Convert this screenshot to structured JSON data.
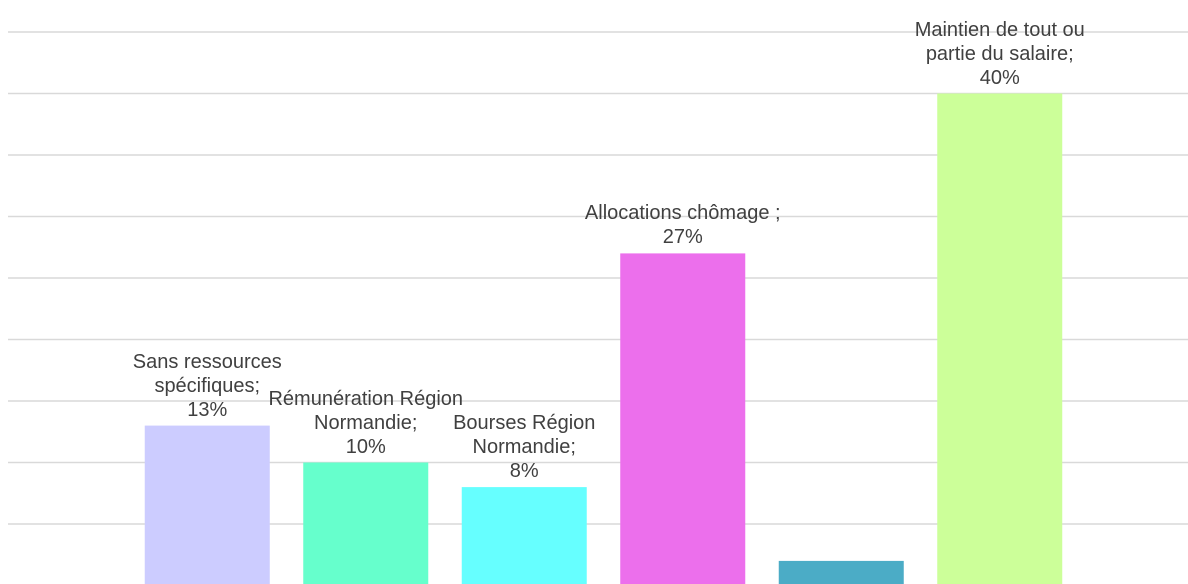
{
  "chart_data": {
    "type": "bar",
    "categories": [
      "Sans ressources spécifiques;",
      "Rémunération Région Normandie;",
      "Bourses Région Normandie;",
      "Allocations chômage ;",
      null,
      "Maintien de tout ou partie du salaire;"
    ],
    "values": [
      13,
      10,
      8,
      27,
      2,
      40
    ],
    "value_labels": [
      "13%",
      "10%",
      "8%",
      "27%",
      null,
      "40%"
    ],
    "colors": [
      "#ccccff",
      "#66ffcc",
      "#66ffff",
      "#ec6fec",
      "#4bacc6",
      "#ccff99"
    ],
    "ylim": [
      0,
      45
    ],
    "yticks": [
      0,
      5,
      10,
      15,
      20,
      25,
      30,
      35,
      40,
      45
    ],
    "grid": true
  }
}
